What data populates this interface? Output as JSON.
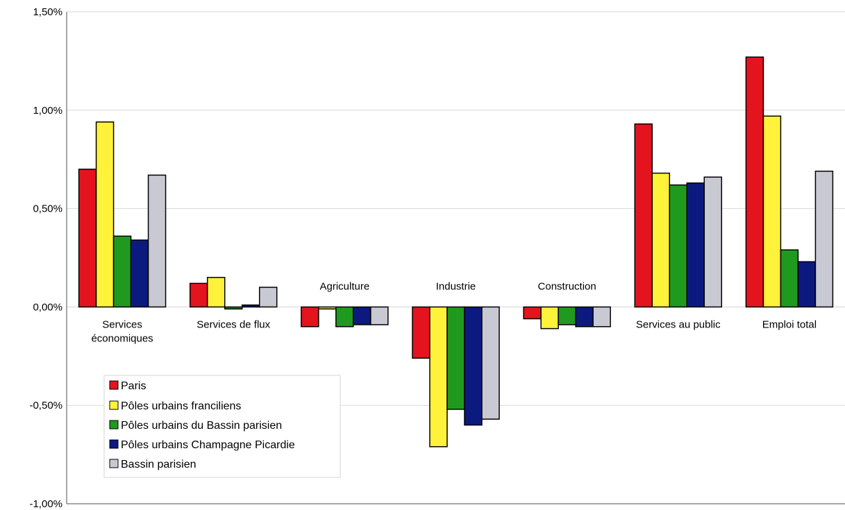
{
  "chart_data": {
    "type": "bar",
    "title": "",
    "xlabel": "",
    "ylabel": "",
    "ylim": [
      -1.0,
      1.5
    ],
    "y_ticks": [
      1.5,
      1.0,
      0.5,
      0.0,
      -0.5,
      -1.0
    ],
    "y_tick_labels": [
      "1,50%",
      "1,00%",
      "0,50%",
      "0,00%",
      "-0,50%",
      "-1,00%"
    ],
    "grid": true,
    "legend_position": "bottom-left",
    "categories": [
      "Services économiques",
      "Services de flux",
      "Agriculture",
      "Industrie",
      "Construction",
      "Services au public",
      "Emploi total"
    ],
    "category_label_lines": [
      [
        "Services",
        "économiques"
      ],
      [
        "Services de flux"
      ],
      [
        "Agriculture"
      ],
      [
        "Industrie"
      ],
      [
        "Construction"
      ],
      [
        "Services au public"
      ],
      [
        "Emploi total"
      ]
    ],
    "series": [
      {
        "name": "Paris",
        "color": "#e3141e",
        "values": [
          0.7,
          0.12,
          -0.1,
          -0.26,
          -0.06,
          0.93,
          1.27
        ]
      },
      {
        "name": "Pôles urbains franciliens",
        "color": "#fff23a",
        "values": [
          0.94,
          0.15,
          -0.01,
          -0.71,
          -0.11,
          0.68,
          0.97
        ]
      },
      {
        "name": "Pôles urbains du Bassin parisien",
        "color": "#1f9a1f",
        "values": [
          0.36,
          -0.01,
          -0.1,
          -0.52,
          -0.09,
          0.62,
          0.29
        ]
      },
      {
        "name": "Pôles urbains Champagne Picardie",
        "color": "#0c1a80",
        "values": [
          0.34,
          0.01,
          -0.09,
          -0.6,
          -0.1,
          0.63,
          0.23
        ]
      },
      {
        "name": "Bassin parisien",
        "color": "#c9c9d3",
        "values": [
          0.67,
          0.1,
          -0.09,
          -0.57,
          -0.1,
          0.66,
          0.69
        ]
      }
    ]
  }
}
